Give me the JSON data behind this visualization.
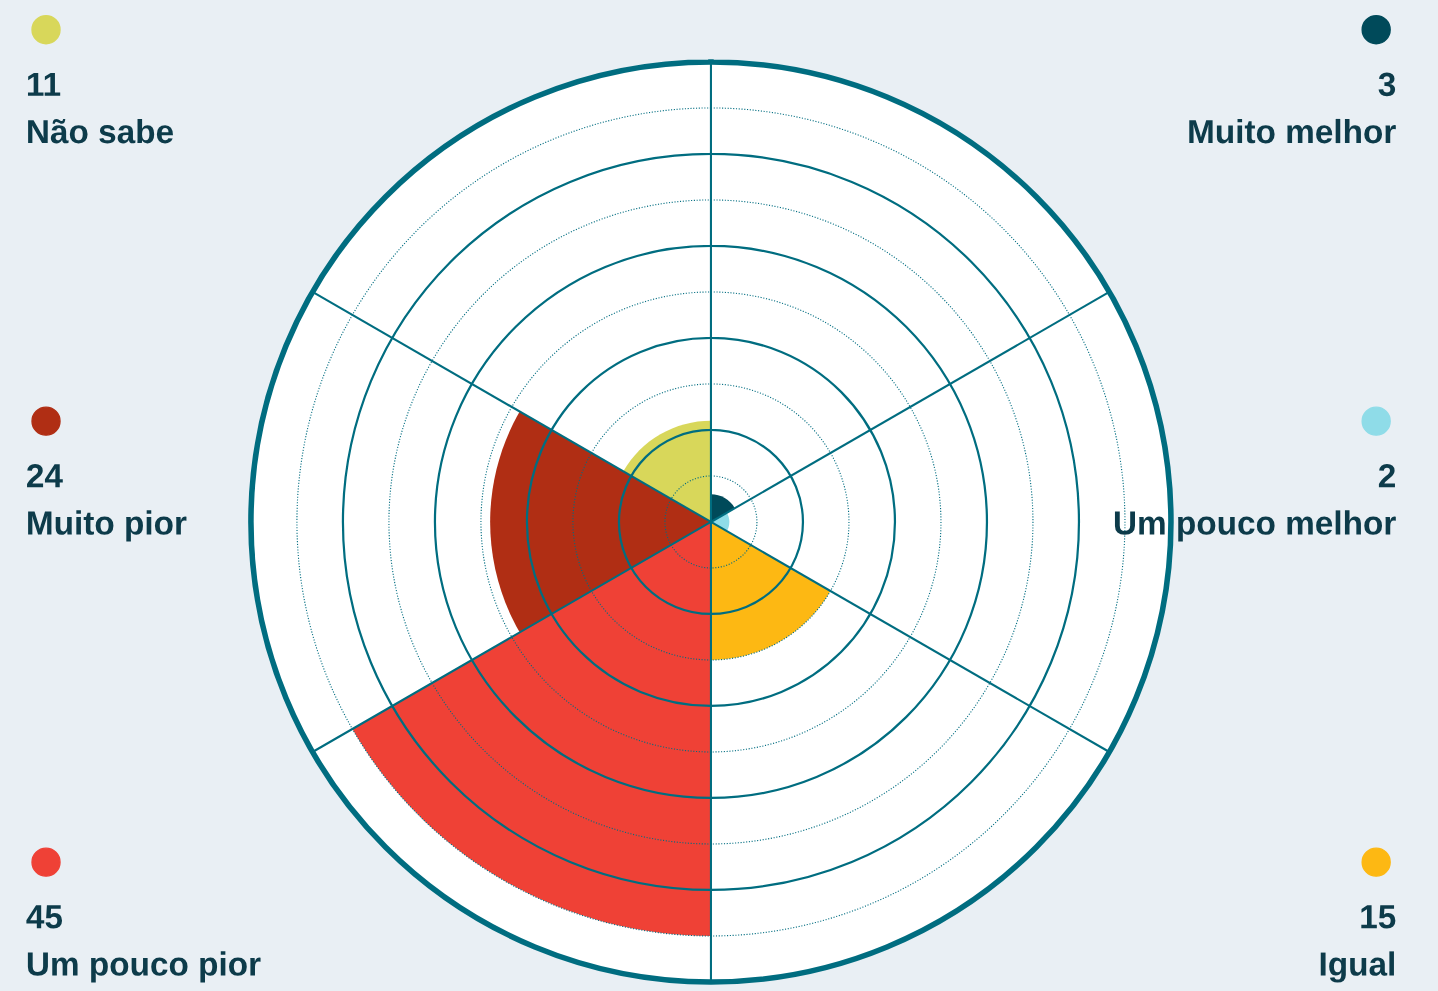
{
  "chart_data": {
    "type": "other",
    "categories": [
      "Muito melhor",
      "Um pouco melhor",
      "Igual",
      "Um pouco pior",
      "Muito pior",
      "Não sabe"
    ],
    "values": [
      3,
      2,
      15,
      45,
      24,
      11
    ],
    "colors": [
      "#004a5a",
      "#8fdce8",
      "#fdb813",
      "#ef4136",
      "#b02e14",
      "#d8d75a"
    ],
    "data_labels": true
  }
}
